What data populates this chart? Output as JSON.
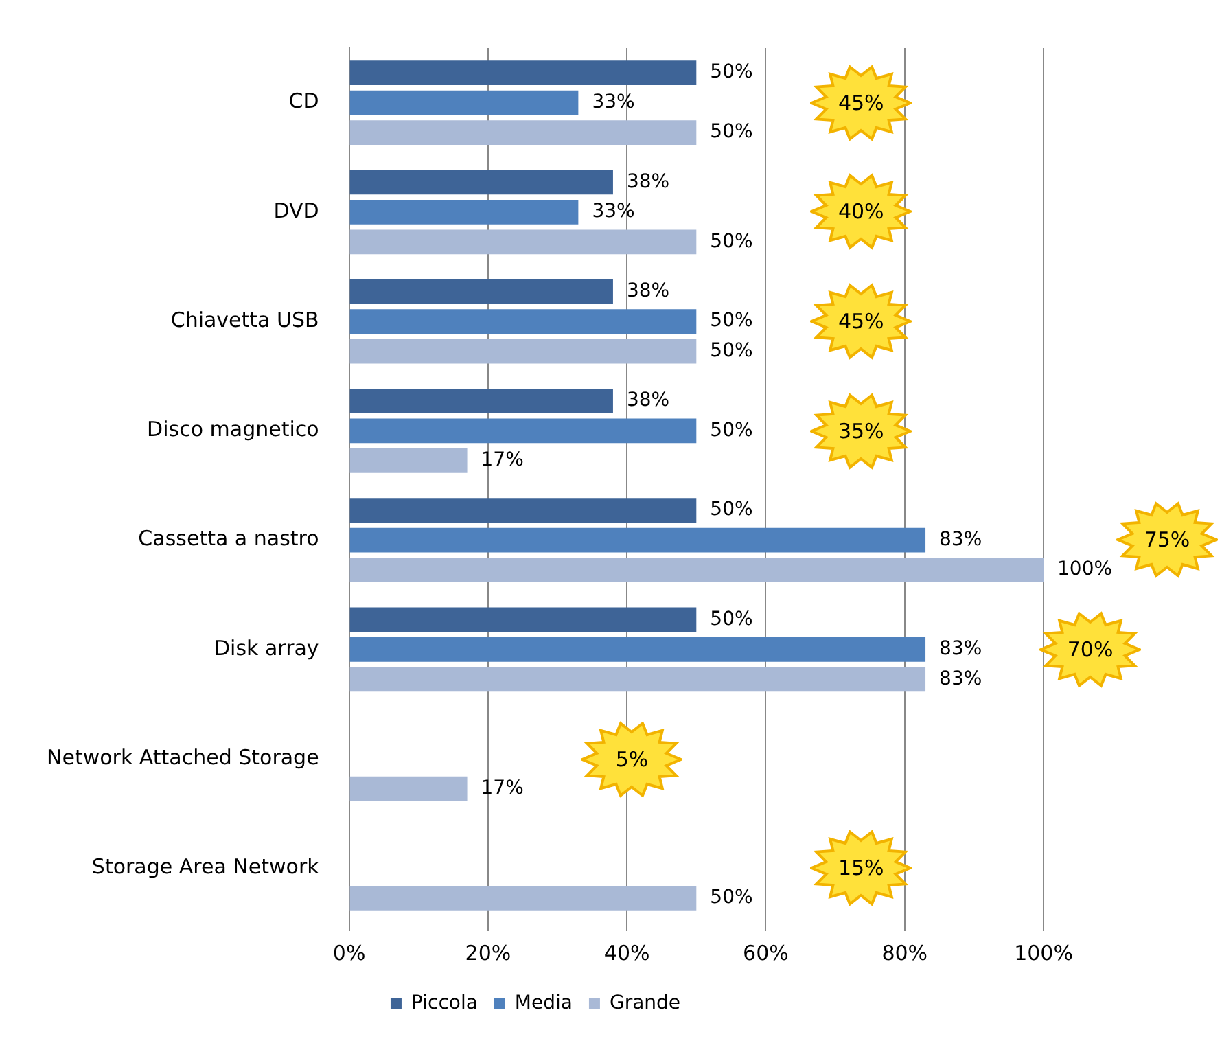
{
  "chart_data": {
    "type": "bar",
    "orientation": "horizontal",
    "categories": [
      "CD",
      "DVD",
      "Chiavetta USB",
      "Disco magnetico",
      "Cassetta a nastro",
      "Disk array",
      "Network Attached Storage",
      "Storage Area Network"
    ],
    "series": [
      {
        "name": "Piccola",
        "color": "#3e6497",
        "values": [
          50,
          38,
          38,
          38,
          50,
          50,
          null,
          null
        ],
        "value_labels": [
          "50%",
          "38%",
          "38%",
          "38%",
          "50%",
          "50%",
          null,
          null
        ]
      },
      {
        "name": "Media",
        "color": "#4f81bd",
        "values": [
          33,
          33,
          50,
          50,
          83,
          83,
          null,
          null
        ],
        "value_labels": [
          "33%",
          "33%",
          "50%",
          "50%",
          "83%",
          "83%",
          null,
          null
        ]
      },
      {
        "name": "Grande",
        "color": "#a9b9d6",
        "values": [
          50,
          50,
          50,
          17,
          100,
          83,
          17,
          50
        ],
        "value_labels": [
          "50%",
          "50%",
          "50%",
          "17%",
          "100%",
          "83%",
          "17%",
          "50%"
        ]
      }
    ],
    "xlim": [
      0,
      100
    ],
    "xticks": [
      {
        "value": 0,
        "label": "0%"
      },
      {
        "value": 20,
        "label": "20%"
      },
      {
        "value": 40,
        "label": "40%"
      },
      {
        "value": 60,
        "label": "60%"
      },
      {
        "value": 80,
        "label": "80%"
      },
      {
        "value": 100,
        "label": "100%"
      }
    ],
    "grid": "x",
    "legend": "bottom",
    "annotations": [
      "45%",
      "40%",
      "45%",
      "35%",
      "75%",
      "70%",
      "5%",
      "15%"
    ]
  }
}
